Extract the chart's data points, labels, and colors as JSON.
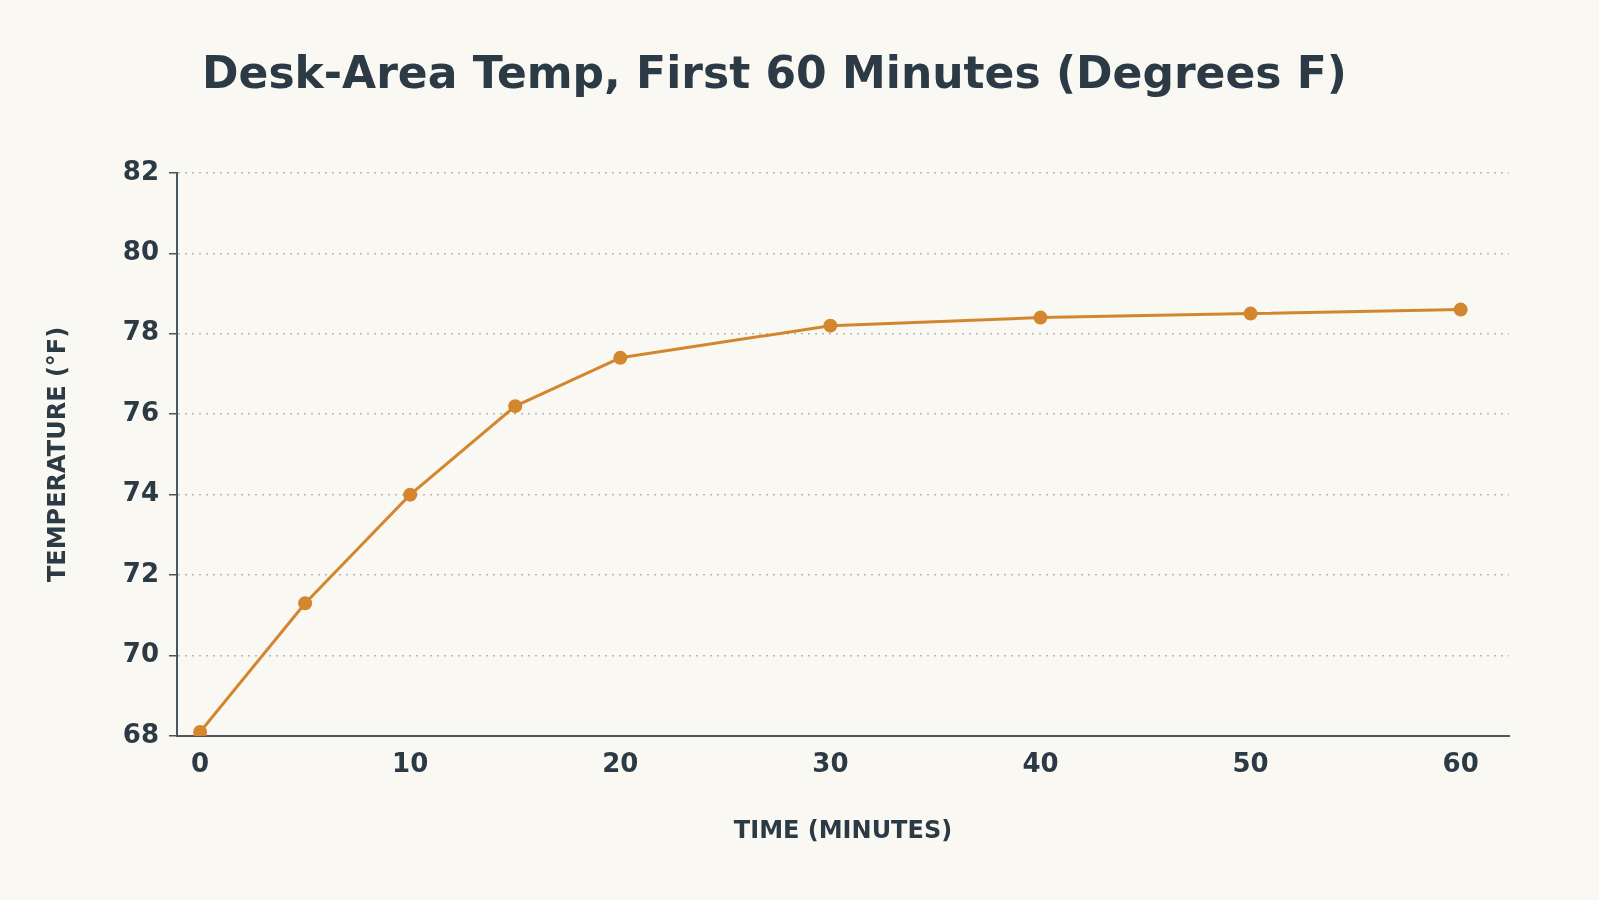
{
  "chart_data": {
    "type": "line",
    "title": "Desk-Area Temp, First 60 Minutes (Degrees F)",
    "xlabel": "TIME (MINUTES)",
    "ylabel": "TEMPERATURE (°F)",
    "x": [
      0,
      5,
      10,
      15,
      20,
      30,
      40,
      50,
      60
    ],
    "series": [
      {
        "color": "#d4862e",
        "values": [
          68.1,
          71.3,
          74.0,
          76.2,
          77.4,
          78.2,
          78.4,
          78.5,
          78.6
        ]
      }
    ],
    "xlim": [
      -1.1,
      62.3
    ],
    "xticks": [
      0,
      10,
      20,
      30,
      40,
      50,
      60
    ],
    "ylim": [
      68,
      82
    ],
    "yticks": [
      68,
      70,
      72,
      74,
      76,
      78,
      80,
      82
    ],
    "grid": "y",
    "legend": false,
    "marker": "circle",
    "line_style": "solid"
  }
}
